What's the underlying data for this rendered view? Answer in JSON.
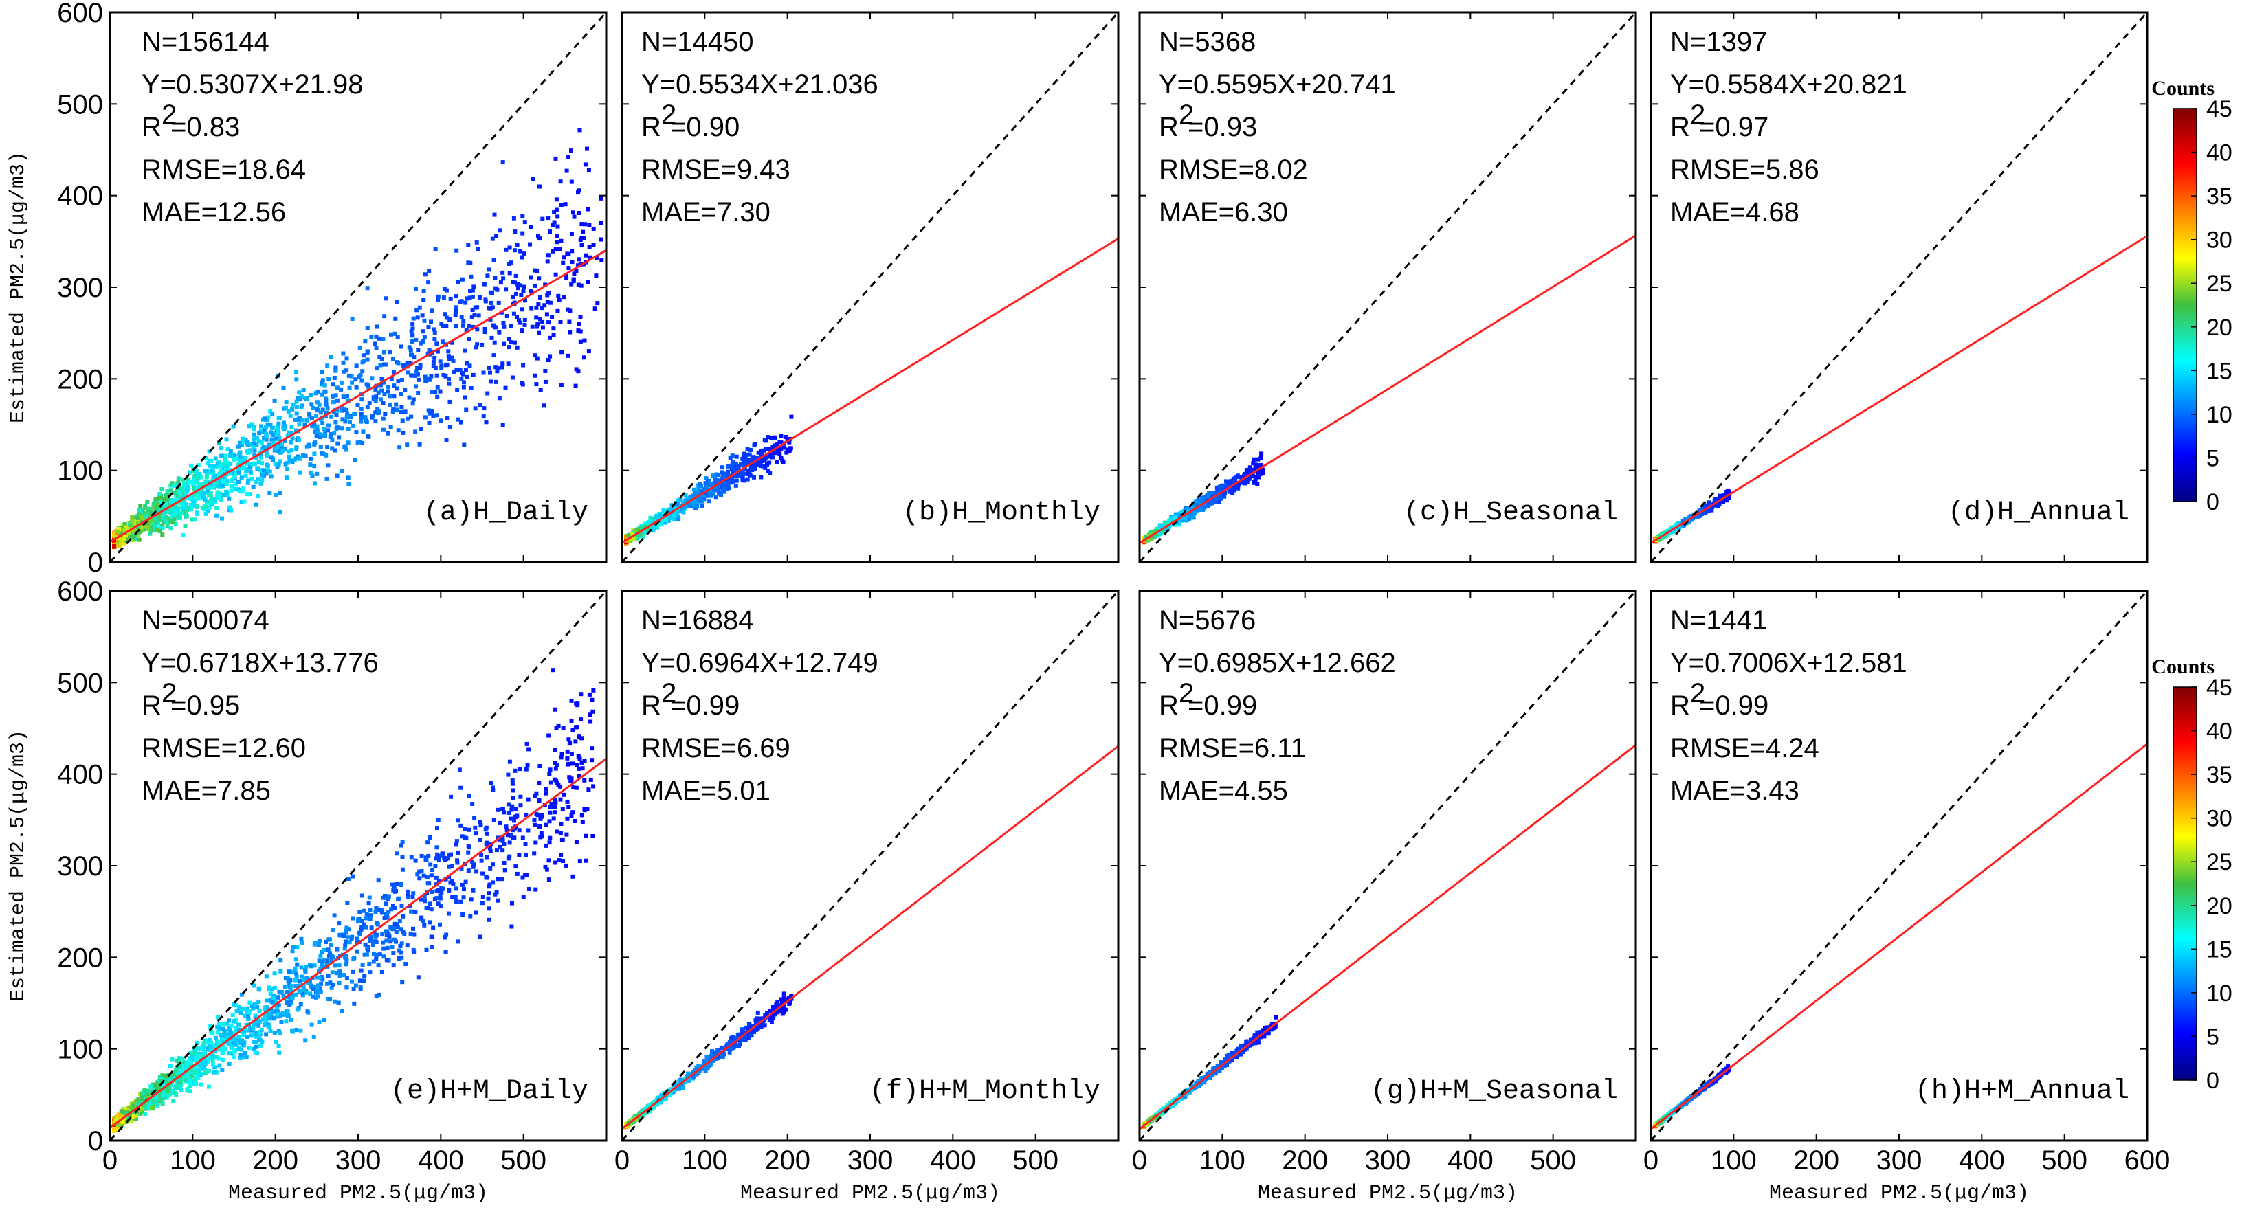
{
  "chart_data": {
    "type": "scatter",
    "description_style": "density scatter (hexbin-like) of estimated vs measured PM2.5 with 1:1 line and linear fit",
    "axis_xlabel": "Measured PM2.5(μg/m3)",
    "axis_ylabel": "Estimated PM2.5(μg/m3)",
    "xlim": [
      0,
      600
    ],
    "ylim": [
      0,
      600
    ],
    "x_ticks": [
      "0",
      "100",
      "200",
      "300",
      "400",
      "500",
      "600"
    ],
    "x_ticks_inner": [
      "0",
      "100",
      "200",
      "300",
      "400",
      "500"
    ],
    "y_ticks": [
      "0",
      "100",
      "200",
      "300",
      "400",
      "500",
      "600"
    ],
    "colorbar": {
      "title": "Counts",
      "range": [
        0,
        45
      ],
      "ticks": [
        "0",
        "5",
        "10",
        "15",
        "20",
        "25",
        "30",
        "35",
        "40",
        "45"
      ]
    },
    "colors": {
      "one_to_one_line": "#000000",
      "fit_line": "#ff2020",
      "density_low": "#1a2f7a",
      "density_high": "#8b0000"
    },
    "panels": [
      {
        "id": "a",
        "label": "(a)H_Daily",
        "N": "N=156144",
        "eq": "Y=0.5307X+21.98",
        "r2_prefix": "R",
        "r2_value": "=0.83",
        "rmse": "RMSE=18.64",
        "mae": "MAE=12.56",
        "slope": 0.5307,
        "intercept": 21.98,
        "xmax_data": 590,
        "spread": 1.0
      },
      {
        "id": "b",
        "label": "(b)H_Monthly",
        "N": "N=14450",
        "eq": "Y=0.5534X+21.036",
        "r2_prefix": "R",
        "r2_value": "=0.90",
        "rmse": "RMSE=9.43",
        "mae": "MAE=7.30",
        "slope": 0.5534,
        "intercept": 21.036,
        "xmax_data": 200,
        "spread": 0.45
      },
      {
        "id": "c",
        "label": "(c)H_Seasonal",
        "N": "N=5368",
        "eq": "Y=0.5595X+20.741",
        "r2_prefix": "R",
        "r2_value": "=0.93",
        "rmse": "RMSE=8.02",
        "mae": "MAE=6.30",
        "slope": 0.5595,
        "intercept": 20.741,
        "xmax_data": 145,
        "spread": 0.35
      },
      {
        "id": "d",
        "label": "(d)H_Annual",
        "N": "N=1397",
        "eq": "Y=0.5584X+20.821",
        "r2_prefix": "R",
        "r2_value": "=0.97",
        "rmse": "RMSE=5.86",
        "mae": "MAE=4.68",
        "slope": 0.5584,
        "intercept": 20.821,
        "xmax_data": 90,
        "spread": 0.2
      },
      {
        "id": "e",
        "label": "(e)H+M_Daily",
        "N": "N=500074",
        "eq": "Y=0.6718X+13.776",
        "r2_prefix": "R",
        "r2_value": "=0.95",
        "rmse": "RMSE=12.60",
        "mae": "MAE=7.85",
        "slope": 0.6718,
        "intercept": 13.776,
        "xmax_data": 580,
        "spread": 0.8
      },
      {
        "id": "f",
        "label": "(f)H+M_Monthly",
        "N": "N=16884",
        "eq": "Y=0.6964X+12.749",
        "r2_prefix": "R",
        "r2_value": "=0.99",
        "rmse": "RMSE=6.69",
        "mae": "MAE=5.01",
        "slope": 0.6964,
        "intercept": 12.749,
        "xmax_data": 200,
        "spread": 0.2
      },
      {
        "id": "g",
        "label": "(g)H+M_Seasonal",
        "N": "N=5676",
        "eq": "Y=0.6985X+12.662",
        "r2_prefix": "R",
        "r2_value": "=0.99",
        "rmse": "RMSE=6.11",
        "mae": "MAE=4.55",
        "slope": 0.6985,
        "intercept": 12.662,
        "xmax_data": 160,
        "spread": 0.15
      },
      {
        "id": "h",
        "label": "(h)H+M_Annual",
        "N": "N=1441",
        "eq": "Y=0.7006X+12.581",
        "r2_prefix": "R",
        "r2_value": "=0.99",
        "rmse": "RMSE=4.24",
        "mae": "MAE=3.43",
        "slope": 0.7006,
        "intercept": 12.581,
        "xmax_data": 90,
        "spread": 0.1
      }
    ]
  }
}
